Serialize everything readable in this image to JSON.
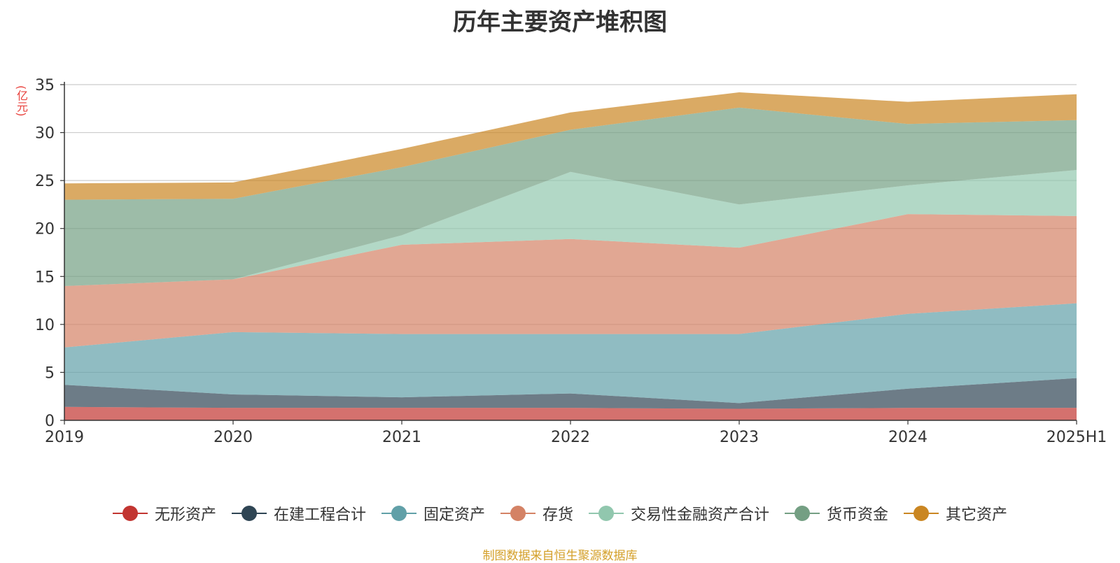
{
  "chart_data": {
    "type": "area",
    "stacked": true,
    "title": "历年主要资产堆积图",
    "ylabel": "(亿元)",
    "categories": [
      "2019",
      "2020",
      "2021",
      "2022",
      "2023",
      "2024",
      "2025H1"
    ],
    "ylim": [
      0,
      35
    ],
    "yticks": [
      0,
      5,
      10,
      15,
      20,
      25,
      30,
      35
    ],
    "grid": true,
    "legend_position": "bottom",
    "series": [
      {
        "name": "无形资产",
        "color": "#c23531",
        "values": [
          1.4,
          1.3,
          1.3,
          1.3,
          1.2,
          1.3,
          1.3
        ]
      },
      {
        "name": "在建工程合计",
        "color": "#2f4554",
        "values": [
          2.3,
          1.4,
          1.1,
          1.5,
          0.6,
          2.0,
          3.1
        ]
      },
      {
        "name": "固定资产",
        "color": "#61a0a8",
        "values": [
          3.9,
          6.5,
          6.6,
          6.2,
          7.2,
          7.8,
          7.8
        ]
      },
      {
        "name": "存货",
        "color": "#d48265",
        "values": [
          6.4,
          5.5,
          9.3,
          9.9,
          9.0,
          10.4,
          9.1
        ]
      },
      {
        "name": "交易性金融资产合计",
        "color": "#91c7ae",
        "values": [
          0.0,
          0.0,
          1.0,
          7.0,
          4.5,
          3.0,
          4.8
        ]
      },
      {
        "name": "货币资金",
        "color": "#749f83",
        "values": [
          9.0,
          8.4,
          7.1,
          4.4,
          10.1,
          6.4,
          5.2
        ]
      },
      {
        "name": "其它资产",
        "color": "#ca8622",
        "values": [
          1.7,
          1.7,
          1.9,
          1.8,
          1.6,
          2.3,
          2.7
        ]
      }
    ]
  },
  "footer": {
    "source": "制图数据来自恒生聚源数据库"
  }
}
